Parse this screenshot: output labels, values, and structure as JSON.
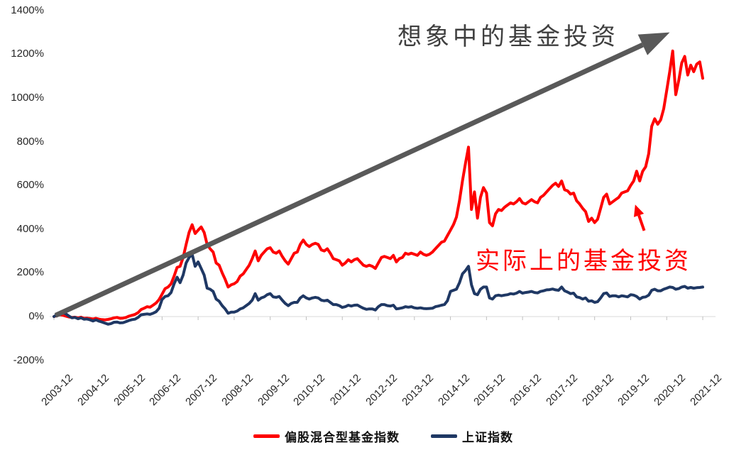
{
  "chart_data": {
    "type": "line",
    "title": "",
    "xlabel": "",
    "ylabel": "",
    "unit": "%",
    "grid": "none",
    "legend_position": "bottom",
    "ylim": [
      -200,
      1400
    ],
    "y_tick_labels": [
      "1400%",
      "1200%",
      "1000%",
      "800%",
      "600%",
      "400%",
      "200%",
      "0%",
      "-200%"
    ],
    "x_tick_labels": [
      "2003-12",
      "2004-12",
      "2005-12",
      "2006-12",
      "2007-12",
      "2008-12",
      "2009-12",
      "2010-12",
      "2011-12",
      "2012-12",
      "2013-12",
      "2014-12",
      "2015-12",
      "2016-12",
      "2017-12",
      "2018-12",
      "2019-12",
      "2020-12",
      "2021-12"
    ],
    "x_start": "2003-12",
    "x_step_months": 1,
    "series": [
      {
        "name": "偏股混合型基金指数",
        "color": "#fe0000",
        "values": [
          0,
          5,
          8,
          6,
          2,
          -2,
          -4,
          -3,
          -6,
          -3,
          -8,
          -7,
          -9,
          -11,
          -8,
          -12,
          -14,
          -15,
          -13,
          -10,
          -6,
          -4,
          -8,
          -7,
          -4,
          2,
          6,
          10,
          18,
          32,
          38,
          45,
          43,
          52,
          62,
          78,
          102,
          128,
          135,
          150,
          185,
          225,
          230,
          270,
          330,
          385,
          420,
          380,
          395,
          410,
          385,
          330,
          310,
          295,
          245,
          235,
          200,
          170,
          135,
          145,
          150,
          160,
          185,
          195,
          215,
          235,
          265,
          300,
          255,
          280,
          295,
          310,
          315,
          295,
          290,
          300,
          275,
          255,
          240,
          265,
          290,
          295,
          330,
          350,
          330,
          320,
          330,
          335,
          330,
          305,
          300,
          310,
          290,
          265,
          260,
          255,
          235,
          245,
          260,
          250,
          260,
          265,
          250,
          235,
          230,
          235,
          230,
          220,
          245,
          270,
          275,
          270,
          265,
          280,
          250,
          265,
          270,
          290,
          285,
          290,
          285,
          280,
          295,
          285,
          280,
          285,
          295,
          310,
          325,
          340,
          345,
          370,
          395,
          420,
          455,
          530,
          620,
          700,
          775,
          490,
          570,
          450,
          545,
          590,
          565,
          430,
          415,
          470,
          490,
          485,
          500,
          510,
          520,
          515,
          525,
          540,
          520,
          515,
          525,
          535,
          525,
          520,
          545,
          555,
          570,
          585,
          600,
          610,
          595,
          620,
          580,
          575,
          560,
          565,
          530,
          515,
          495,
          480,
          435,
          450,
          430,
          445,
          495,
          545,
          560,
          515,
          525,
          535,
          545,
          565,
          570,
          575,
          600,
          620,
          665,
          620,
          665,
          685,
          745,
          870,
          905,
          880,
          900,
          950,
          1035,
          1120,
          1215,
          1015,
          1080,
          1160,
          1190,
          1105,
          1150,
          1120,
          1155,
          1165,
          1090
        ]
      },
      {
        "name": "上证指数",
        "color": "#1f3864",
        "values": [
          0,
          8,
          14,
          18,
          12,
          2,
          -6,
          -4,
          -10,
          -6,
          -12,
          -11,
          -15,
          -20,
          -15,
          -21,
          -25,
          -30,
          -35,
          -32,
          -26,
          -25,
          -29,
          -28,
          -23,
          -18,
          -14,
          -12,
          -4,
          8,
          10,
          12,
          10,
          15,
          22,
          38,
          78,
          92,
          95,
          110,
          150,
          180,
          155,
          190,
          245,
          270,
          285,
          230,
          250,
          220,
          190,
          130,
          125,
          115,
          80,
          70,
          50,
          35,
          15,
          20,
          20,
          25,
          35,
          40,
          50,
          60,
          75,
          105,
          75,
          85,
          90,
          100,
          105,
          90,
          88,
          92,
          75,
          60,
          50,
          60,
          65,
          65,
          85,
          95,
          85,
          80,
          85,
          88,
          85,
          75,
          72,
          75,
          65,
          55,
          55,
          50,
          42,
          45,
          52,
          48,
          52,
          53,
          45,
          38,
          33,
          35,
          35,
          30,
          45,
          55,
          55,
          50,
          48,
          52,
          35,
          37,
          40,
          45,
          43,
          45,
          40,
          38,
          40,
          37,
          36,
          37,
          38,
          45,
          48,
          52,
          55,
          72,
          115,
          120,
          125,
          155,
          195,
          210,
          230,
          145,
          105,
          100,
          125,
          135,
          135,
          85,
          80,
          95,
          98,
          95,
          98,
          100,
          105,
          103,
          107,
          115,
          107,
          110,
          112,
          115,
          110,
          108,
          115,
          118,
          122,
          123,
          126,
          122,
          120,
          135,
          118,
          112,
          105,
          107,
          90,
          87,
          80,
          85,
          70,
          72,
          65,
          68,
          85,
          105,
          108,
          92,
          95,
          95,
          90,
          95,
          93,
          90,
          100,
          98,
          92,
          80,
          88,
          90,
          98,
          120,
          125,
          118,
          118,
          125,
          130,
          135,
          133,
          125,
          128,
          135,
          138,
          130,
          133,
          130,
          132,
          133,
          135
        ]
      }
    ],
    "annotations": {
      "imagined": {
        "text": "想象中的基金投资",
        "color": "#3f3f3f"
      },
      "actual": {
        "text": "实际上的基金投资",
        "color": "#ff0000",
        "arrow": {
          "start": {
            "month_index": 196.5,
            "value_pct": 393
          },
          "end": {
            "month_index": 193.5,
            "value_pct": 512
          }
        }
      },
      "trend_arrow": {
        "color": "#595959",
        "start": {
          "month_index": 0.5,
          "value_pct": 5
        },
        "end": {
          "month_index": 205,
          "value_pct": 1300
        }
      }
    },
    "axis_color": "#d9d9d9"
  }
}
